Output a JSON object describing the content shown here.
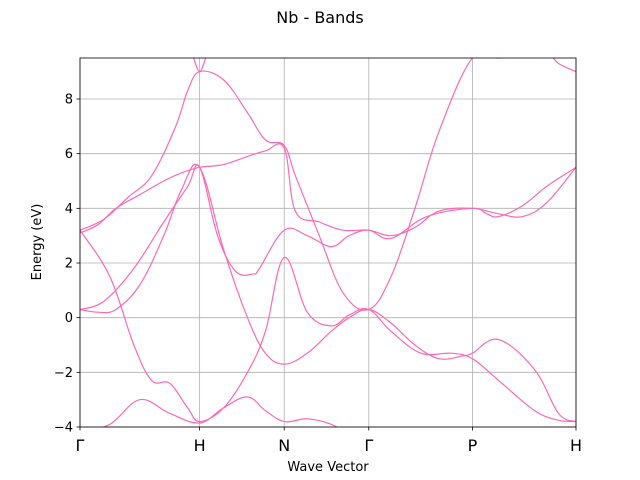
{
  "chart_data": {
    "type": "line",
    "title": "Nb - Bands",
    "xlabel": "Wave Vector",
    "ylabel": "Energy (eV)",
    "ylim": [
      -4,
      9.5
    ],
    "yticks": [
      -4,
      -2,
      0,
      2,
      4,
      6,
      8
    ],
    "kpoint_labels": [
      "Γ",
      "H",
      "N",
      "Γ",
      "P",
      "H"
    ],
    "kpoint_positions": [
      0.0,
      1.0,
      1.7071,
      2.4142,
      3.2802,
      4.1463
    ],
    "grid": true,
    "line_color": "#ff69b4",
    "series": [
      {
        "x": [
          0,
          0.25,
          0.5,
          0.75,
          1.0,
          1.2,
          1.4,
          1.55,
          1.7071,
          1.9,
          2.1,
          2.25,
          2.4142,
          2.7,
          3.0,
          3.2802,
          3.5,
          3.8,
          4.1463
        ],
        "values": [
          -4.2,
          -3.9,
          -3.0,
          -3.5,
          -3.85,
          -3.3,
          -2.9,
          -3.4,
          -3.8,
          -3.7,
          -3.9,
          -4.3,
          -4.8,
          -4.5,
          -4.3,
          -4.6,
          -4.4,
          -4.1,
          -4.0
        ]
      },
      {
        "x": [
          0,
          0.25,
          0.45,
          0.6,
          0.75,
          0.9,
          1.0,
          1.2,
          1.4,
          1.55,
          1.7071,
          1.9,
          2.1,
          2.25,
          2.4142,
          2.6,
          2.85,
          3.1,
          3.2802,
          3.5,
          3.8,
          4.0,
          4.1463
        ],
        "values": [
          3.2,
          1.5,
          -1.0,
          -2.3,
          -2.4,
          -3.3,
          -3.8,
          -3.3,
          -2.0,
          -0.5,
          2.2,
          0.2,
          -0.3,
          0.1,
          0.3,
          -0.5,
          -1.3,
          -1.3,
          -1.5,
          -2.3,
          -3.4,
          -3.75,
          -3.8
        ]
      },
      {
        "x": [
          0,
          0.2,
          0.45,
          0.7,
          0.9,
          1.0,
          1.15,
          1.3,
          1.45,
          1.5,
          1.7071,
          1.9,
          2.1,
          2.25,
          2.4142,
          2.6,
          2.9,
          3.2802,
          3.4,
          3.5,
          3.7,
          3.9,
          4.1463
        ],
        "values": [
          0.3,
          0.6,
          1.8,
          3.5,
          4.8,
          5.5,
          3.0,
          1.7,
          1.6,
          1.8,
          3.2,
          3.0,
          2.6,
          3.0,
          3.2,
          2.9,
          3.7,
          4.0,
          3.8,
          3.7,
          4.1,
          4.8,
          5.5
        ]
      },
      {
        "x": [
          0,
          0.15,
          0.3,
          0.5,
          0.7,
          0.85,
          1.0,
          1.2,
          1.4,
          1.55,
          1.7071,
          1.9,
          2.1,
          2.25,
          2.4142,
          2.6,
          2.8,
          3.0,
          3.2,
          3.2802,
          3.5,
          3.8,
          4.0,
          4.1463
        ],
        "values": [
          0.3,
          0.2,
          0.3,
          1.2,
          3.0,
          4.7,
          5.5,
          2.5,
          0.0,
          -1.3,
          -1.7,
          -1.3,
          -0.5,
          0.0,
          0.3,
          -0.2,
          -1.0,
          -1.5,
          -1.4,
          -1.3,
          -0.8,
          -1.9,
          -3.5,
          -3.8
        ]
      },
      {
        "x": [
          0,
          0.2,
          0.4,
          0.6,
          0.8,
          0.9,
          1.0,
          1.2,
          1.4,
          1.55,
          1.7071,
          1.8,
          2.0,
          2.2,
          2.4142,
          2.6,
          2.8,
          3.0,
          3.2802,
          3.5,
          3.7,
          3.9,
          4.0,
          4.1463
        ],
        "values": [
          3.2,
          3.6,
          4.4,
          5.2,
          7.0,
          8.3,
          9.0,
          8.7,
          7.5,
          6.5,
          6.3,
          5.2,
          3.0,
          0.9,
          0.3,
          1.5,
          4.0,
          6.8,
          9.5,
          9.5,
          9.6,
          9.7,
          9.3,
          9.0
        ]
      },
      {
        "x": [
          0,
          0.15,
          0.3,
          0.5,
          0.7,
          0.85,
          1.0,
          1.2,
          1.4,
          1.55,
          1.7071,
          1.8,
          2.0,
          2.2,
          2.4142,
          2.6,
          2.8,
          3.0,
          3.2802,
          3.5,
          3.7,
          3.9,
          4.1463
        ],
        "values": [
          3.1,
          3.4,
          4.0,
          4.5,
          5.0,
          5.3,
          5.5,
          5.6,
          5.9,
          6.1,
          6.2,
          3.9,
          3.5,
          3.2,
          3.2,
          3.0,
          3.3,
          3.9,
          4.0,
          3.8,
          3.7,
          4.2,
          5.5
        ]
      },
      {
        "x": [
          0.95,
          1.0,
          1.05
        ],
        "values": [
          9.5,
          9.0,
          9.5
        ]
      }
    ]
  }
}
